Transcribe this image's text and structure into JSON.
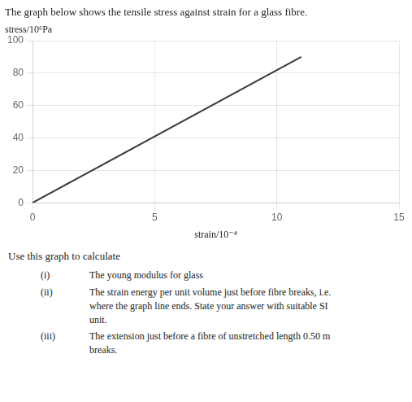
{
  "chart_data": {
    "type": "line",
    "title": "The graph below shows the tensile stress against strain for a glass fibre.",
    "y_label": "stress/10⁶Pa",
    "x_label": "strain/10⁻⁴",
    "x": [
      0,
      11
    ],
    "values": [
      0,
      90
    ],
    "color": "#3a3a3a",
    "xlim": [
      0,
      15
    ],
    "ylim": [
      0,
      100
    ],
    "xticks": [
      0,
      5,
      10,
      15
    ],
    "yticks": [
      0,
      20,
      40,
      60,
      80,
      100
    ],
    "grid": true,
    "annotations": [
      "Use this graph to calculate",
      [
        "(i)",
        "The young modulus for glass"
      ],
      [
        "(ii)",
        "The strain energy per unit volume just before fibre breaks, i.e.\nwhere the graph line ends. State your answer with suitable SI\nunit."
      ],
      [
        "(iii)",
        "The extension just before a fibre of unstretched length 0.50 m\nbreaks."
      ]
    ]
  }
}
